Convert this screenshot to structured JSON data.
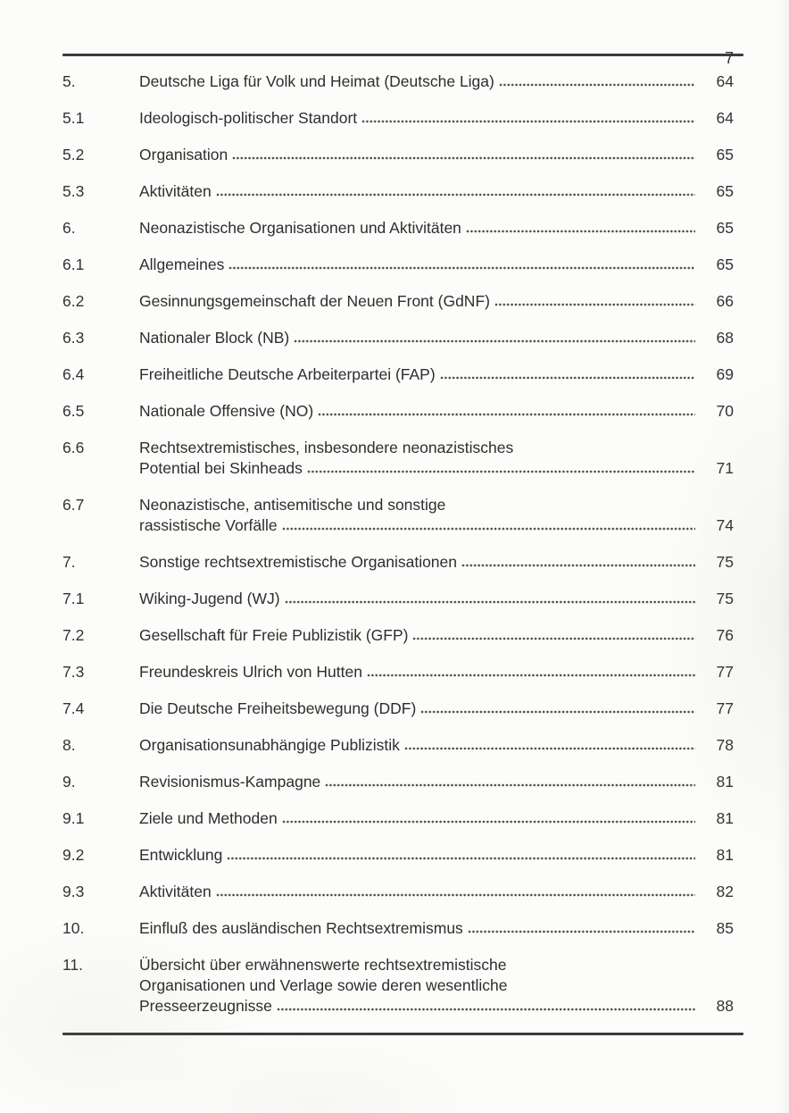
{
  "page": {
    "number": "7"
  },
  "toc": {
    "entries": [
      {
        "num": "5.",
        "lines": [
          "Deutsche Liga für Volk und Heimat (Deutsche Liga)"
        ],
        "page": "64"
      },
      {
        "num": "5.1",
        "lines": [
          "Ideologisch-politischer Standort"
        ],
        "page": "64"
      },
      {
        "num": "5.2",
        "lines": [
          "Organisation"
        ],
        "page": "65"
      },
      {
        "num": "5.3",
        "lines": [
          "Aktivitäten"
        ],
        "page": "65"
      },
      {
        "num": "6.",
        "lines": [
          "Neonazistische Organisationen und Aktivitäten"
        ],
        "page": "65"
      },
      {
        "num": "6.1",
        "lines": [
          "Allgemeines"
        ],
        "page": "65"
      },
      {
        "num": "6.2",
        "lines": [
          "Gesinnungsgemeinschaft der Neuen Front (GdNF)"
        ],
        "page": "66"
      },
      {
        "num": "6.3",
        "lines": [
          "Nationaler Block (NB)"
        ],
        "page": "68"
      },
      {
        "num": "6.4",
        "lines": [
          "Freiheitliche Deutsche Arbeiterpartei (FAP)"
        ],
        "page": "69"
      },
      {
        "num": "6.5",
        "lines": [
          "Nationale Offensive (NO)"
        ],
        "page": "70"
      },
      {
        "num": "6.6",
        "lines": [
          "Rechtsextremistisches, insbesondere neonazistisches",
          "Potential bei Skinheads"
        ],
        "page": "71"
      },
      {
        "num": "6.7",
        "lines": [
          "Neonazistische, antisemitische und sonstige",
          "rassistische Vorfälle"
        ],
        "page": "74"
      },
      {
        "num": "7.",
        "lines": [
          "Sonstige rechtsextremistische Organisationen"
        ],
        "page": "75"
      },
      {
        "num": "7.1",
        "lines": [
          "Wiking-Jugend (WJ)"
        ],
        "page": "75"
      },
      {
        "num": "7.2",
        "lines": [
          "Gesellschaft für Freie Publizistik (GFP)"
        ],
        "page": "76"
      },
      {
        "num": "7.3",
        "lines": [
          "Freundeskreis Ulrich von Hutten"
        ],
        "page": "77"
      },
      {
        "num": "7.4",
        "lines": [
          "Die Deutsche Freiheitsbewegung (DDF)"
        ],
        "page": "77"
      },
      {
        "num": "8.",
        "lines": [
          "Organisationsunabhängige Publizistik"
        ],
        "page": "78"
      },
      {
        "num": "9.",
        "lines": [
          "Revisionismus-Kampagne"
        ],
        "page": "81"
      },
      {
        "num": "9.1",
        "lines": [
          "Ziele und Methoden"
        ],
        "page": "81"
      },
      {
        "num": "9.2",
        "lines": [
          "Entwicklung"
        ],
        "page": "81"
      },
      {
        "num": "9.3",
        "lines": [
          "Aktivitäten"
        ],
        "page": "82"
      },
      {
        "num": "10.",
        "lines": [
          "Einfluß des ausländischen Rechtsextremismus"
        ],
        "page": "85"
      },
      {
        "num": "11.",
        "lines": [
          "Übersicht über erwähnenswerte rechtsextremistische",
          "Organisationen und Verlage sowie deren wesentliche",
          "Presseerzeugnisse"
        ],
        "page": "88"
      }
    ]
  },
  "colors": {
    "paper": "#fcfcfa",
    "ink": "#2e2e2e",
    "rule": "#3c3c3c"
  }
}
